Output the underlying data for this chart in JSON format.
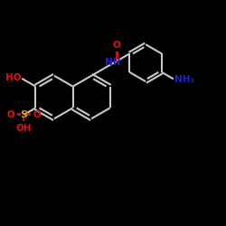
{
  "bg": "#000000",
  "bc": "#c8c8c8",
  "red": "#dd1111",
  "blue": "#2222cc",
  "yellow": "#ccaa00",
  "lw": 1.5,
  "fig_w": 2.5,
  "fig_h": 2.5,
  "dpi": 100,
  "xlim": [
    0,
    10
  ],
  "ylim": [
    0,
    10
  ]
}
